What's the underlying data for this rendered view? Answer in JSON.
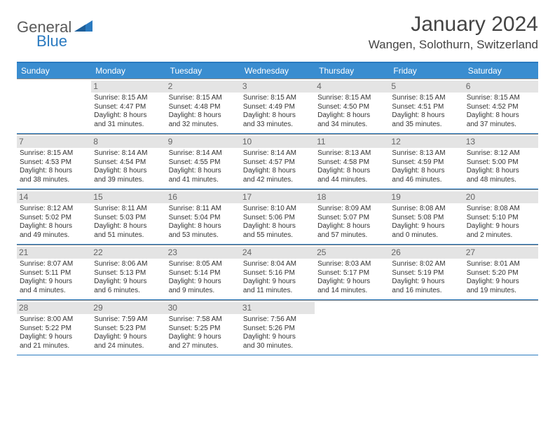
{
  "logo": {
    "text1": "General",
    "text2": "Blue",
    "color1": "#5a5a5a",
    "color2": "#2a7ac0"
  },
  "title": "January 2024",
  "location": "Wangen, Solothurn, Switzerland",
  "colors": {
    "header_bg": "#3a8dd0",
    "header_text": "#ffffff",
    "border": "#2a7ac0",
    "daynum_bg": "#e4e4e4",
    "daynum_text": "#666666",
    "body_text": "#333333"
  },
  "day_names": [
    "Sunday",
    "Monday",
    "Tuesday",
    "Wednesday",
    "Thursday",
    "Friday",
    "Saturday"
  ],
  "weeks": [
    [
      null,
      {
        "n": "1",
        "sr": "8:15 AM",
        "ss": "4:47 PM",
        "dl": "8 hours and 31 minutes."
      },
      {
        "n": "2",
        "sr": "8:15 AM",
        "ss": "4:48 PM",
        "dl": "8 hours and 32 minutes."
      },
      {
        "n": "3",
        "sr": "8:15 AM",
        "ss": "4:49 PM",
        "dl": "8 hours and 33 minutes."
      },
      {
        "n": "4",
        "sr": "8:15 AM",
        "ss": "4:50 PM",
        "dl": "8 hours and 34 minutes."
      },
      {
        "n": "5",
        "sr": "8:15 AM",
        "ss": "4:51 PM",
        "dl": "8 hours and 35 minutes."
      },
      {
        "n": "6",
        "sr": "8:15 AM",
        "ss": "4:52 PM",
        "dl": "8 hours and 37 minutes."
      }
    ],
    [
      {
        "n": "7",
        "sr": "8:15 AM",
        "ss": "4:53 PM",
        "dl": "8 hours and 38 minutes."
      },
      {
        "n": "8",
        "sr": "8:14 AM",
        "ss": "4:54 PM",
        "dl": "8 hours and 39 minutes."
      },
      {
        "n": "9",
        "sr": "8:14 AM",
        "ss": "4:55 PM",
        "dl": "8 hours and 41 minutes."
      },
      {
        "n": "10",
        "sr": "8:14 AM",
        "ss": "4:57 PM",
        "dl": "8 hours and 42 minutes."
      },
      {
        "n": "11",
        "sr": "8:13 AM",
        "ss": "4:58 PM",
        "dl": "8 hours and 44 minutes."
      },
      {
        "n": "12",
        "sr": "8:13 AM",
        "ss": "4:59 PM",
        "dl": "8 hours and 46 minutes."
      },
      {
        "n": "13",
        "sr": "8:12 AM",
        "ss": "5:00 PM",
        "dl": "8 hours and 48 minutes."
      }
    ],
    [
      {
        "n": "14",
        "sr": "8:12 AM",
        "ss": "5:02 PM",
        "dl": "8 hours and 49 minutes."
      },
      {
        "n": "15",
        "sr": "8:11 AM",
        "ss": "5:03 PM",
        "dl": "8 hours and 51 minutes."
      },
      {
        "n": "16",
        "sr": "8:11 AM",
        "ss": "5:04 PM",
        "dl": "8 hours and 53 minutes."
      },
      {
        "n": "17",
        "sr": "8:10 AM",
        "ss": "5:06 PM",
        "dl": "8 hours and 55 minutes."
      },
      {
        "n": "18",
        "sr": "8:09 AM",
        "ss": "5:07 PM",
        "dl": "8 hours and 57 minutes."
      },
      {
        "n": "19",
        "sr": "8:08 AM",
        "ss": "5:08 PM",
        "dl": "9 hours and 0 minutes."
      },
      {
        "n": "20",
        "sr": "8:08 AM",
        "ss": "5:10 PM",
        "dl": "9 hours and 2 minutes."
      }
    ],
    [
      {
        "n": "21",
        "sr": "8:07 AM",
        "ss": "5:11 PM",
        "dl": "9 hours and 4 minutes."
      },
      {
        "n": "22",
        "sr": "8:06 AM",
        "ss": "5:13 PM",
        "dl": "9 hours and 6 minutes."
      },
      {
        "n": "23",
        "sr": "8:05 AM",
        "ss": "5:14 PM",
        "dl": "9 hours and 9 minutes."
      },
      {
        "n": "24",
        "sr": "8:04 AM",
        "ss": "5:16 PM",
        "dl": "9 hours and 11 minutes."
      },
      {
        "n": "25",
        "sr": "8:03 AM",
        "ss": "5:17 PM",
        "dl": "9 hours and 14 minutes."
      },
      {
        "n": "26",
        "sr": "8:02 AM",
        "ss": "5:19 PM",
        "dl": "9 hours and 16 minutes."
      },
      {
        "n": "27",
        "sr": "8:01 AM",
        "ss": "5:20 PM",
        "dl": "9 hours and 19 minutes."
      }
    ],
    [
      {
        "n": "28",
        "sr": "8:00 AM",
        "ss": "5:22 PM",
        "dl": "9 hours and 21 minutes."
      },
      {
        "n": "29",
        "sr": "7:59 AM",
        "ss": "5:23 PM",
        "dl": "9 hours and 24 minutes."
      },
      {
        "n": "30",
        "sr": "7:58 AM",
        "ss": "5:25 PM",
        "dl": "9 hours and 27 minutes."
      },
      {
        "n": "31",
        "sr": "7:56 AM",
        "ss": "5:26 PM",
        "dl": "9 hours and 30 minutes."
      },
      null,
      null,
      null
    ]
  ],
  "labels": {
    "sunrise": "Sunrise:",
    "sunset": "Sunset:",
    "daylight": "Daylight:"
  }
}
